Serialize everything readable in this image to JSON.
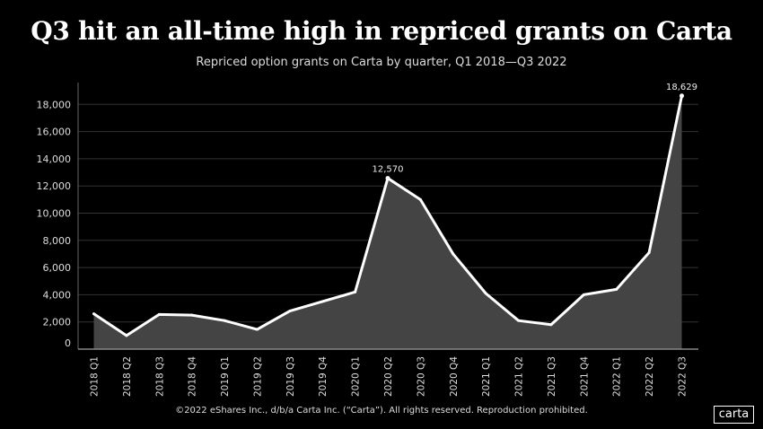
{
  "chart_data": {
    "type": "area",
    "title": "Q3 hit an all-time high in repriced grants on Carta",
    "subtitle": "Repriced option grants on Carta by quarter, Q1 2018—Q3 2022",
    "xlabel": "",
    "ylabel": "",
    "categories": [
      "2018 Q1",
      "2018 Q2",
      "2018 Q3",
      "2018 Q4",
      "2019 Q1",
      "2019 Q2",
      "2019 Q3",
      "2019 Q4",
      "2020 Q1",
      "2020 Q2",
      "2020 Q3",
      "2020 Q4",
      "2021 Q1",
      "2021 Q2",
      "2021 Q3",
      "2021 Q4",
      "2022 Q1",
      "2022 Q2",
      "2022 Q3"
    ],
    "values": [
      2600,
      1000,
      2550,
      2500,
      2100,
      1450,
      2800,
      3500,
      4200,
      12570,
      11000,
      7000,
      4100,
      2100,
      1800,
      4000,
      4400,
      7100,
      18629
    ],
    "data_labels": [
      {
        "index": 9,
        "text": "12,570"
      },
      {
        "index": 18,
        "text": "18,629"
      }
    ],
    "ylim": [
      0,
      19500
    ],
    "yticks": [
      0,
      2000,
      4000,
      6000,
      8000,
      10000,
      12000,
      14000,
      16000,
      18000
    ],
    "ytick_labels": [
      "0",
      "2,000",
      "4,000",
      "6,000",
      "8,000",
      "10,000",
      "12,000",
      "14,000",
      "16,000",
      "18,000"
    ],
    "grid": true,
    "colors": {
      "line": "#ffffff",
      "fill": "#444444",
      "grid": "#333333",
      "background": "#000000"
    }
  },
  "footer": "©2022 eShares Inc., d/b/a Carta Inc. (“Carta”). All rights reserved. Reproduction prohibited.",
  "logo": "carta"
}
